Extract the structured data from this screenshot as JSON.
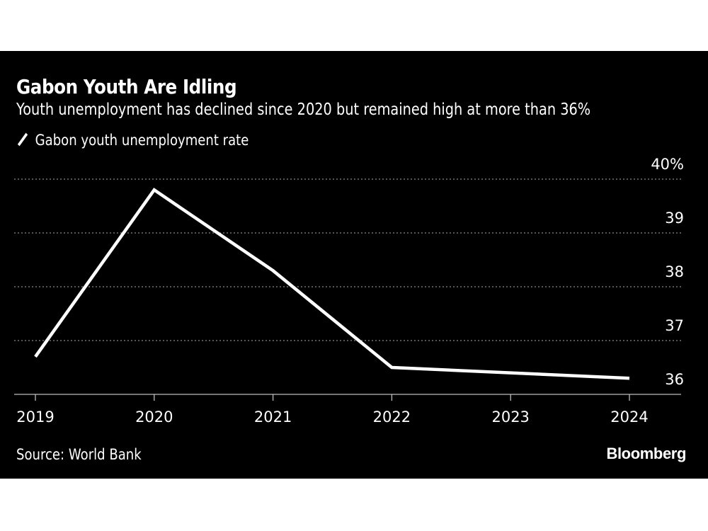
{
  "title": "Gabon Youth Are Idling",
  "subtitle": "Youth unemployment has declined since 2020 but remained high at more than 36%",
  "source": "Source: World Bank",
  "brand": "Bloomberg",
  "colors": {
    "background": "#000000",
    "line": "#ffffff",
    "grid": "#8a8a8a"
  },
  "chart_data": {
    "type": "line",
    "x": [
      2019,
      2020,
      2021,
      2022,
      2023,
      2024
    ],
    "series": [
      {
        "name": "Gabon youth unemployment rate",
        "values": [
          36.7,
          39.8,
          38.3,
          36.5,
          36.4,
          36.3
        ]
      }
    ],
    "x_tick_labels": [
      "2019",
      "2020",
      "2021",
      "2022",
      "2023",
      "2024"
    ],
    "y_tick_labels": [
      "40%",
      "39",
      "38",
      "37",
      "36"
    ],
    "y_ticks": [
      40,
      39,
      38,
      37,
      36
    ],
    "ylim": [
      36,
      40
    ],
    "xlim": [
      2019,
      2024
    ],
    "grid": "horizontal dotted",
    "legend_position": "top-left",
    "y_axis_side": "right"
  }
}
